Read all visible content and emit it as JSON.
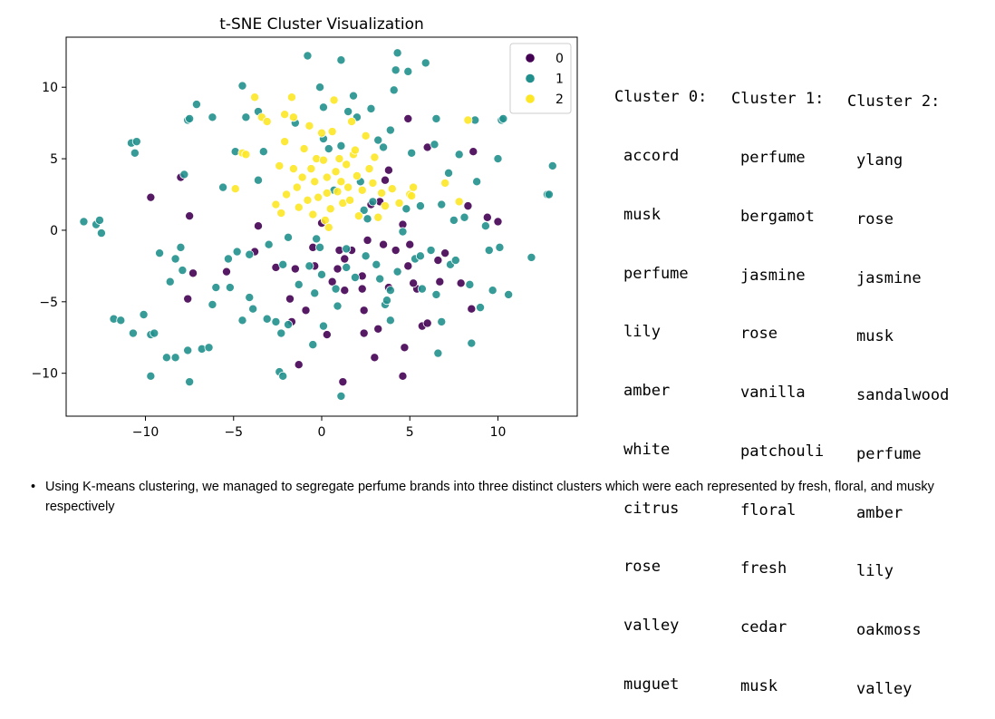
{
  "chart_data": {
    "type": "scatter",
    "title": "t-SNE Cluster Visualization",
    "xlabel": "",
    "ylabel": "",
    "xlim": [
      -14.5,
      14.5
    ],
    "ylim": [
      -13,
      13.5
    ],
    "xticks": [
      -10,
      -5,
      0,
      5,
      10
    ],
    "yticks": [
      -10,
      -5,
      0,
      5,
      10
    ],
    "xtick_labels": [
      "−10",
      "−5",
      "0",
      "5",
      "10"
    ],
    "ytick_labels": [
      "−10",
      "−5",
      "0",
      "5",
      "10"
    ],
    "grid": false,
    "legend_position": "top-right",
    "series": [
      {
        "name": "0",
        "color": "#440154",
        "points": [
          [
            -9.7,
            2.3
          ],
          [
            -8.0,
            3.7
          ],
          [
            -7.5,
            1.0
          ],
          [
            -7.3,
            -3.0
          ],
          [
            -5.4,
            -2.9
          ],
          [
            -3.6,
            0.3
          ],
          [
            -3.8,
            -1.5
          ],
          [
            -2.6,
            -2.6
          ],
          [
            -1.8,
            -4.8
          ],
          [
            -1.7,
            -6.4
          ],
          [
            -1.3,
            -9.4
          ],
          [
            -0.9,
            -5.6
          ],
          [
            -0.5,
            -1.2
          ],
          [
            0.0,
            0.5
          ],
          [
            0.3,
            -7.3
          ],
          [
            0.6,
            -3.6
          ],
          [
            0.9,
            -2.7
          ],
          [
            1.2,
            -10.6
          ],
          [
            1.3,
            -4.2
          ],
          [
            1.7,
            -1.4
          ],
          [
            2.3,
            -3.2
          ],
          [
            2.4,
            -5.6
          ],
          [
            2.4,
            -7.2
          ],
          [
            3.0,
            -8.9
          ],
          [
            2.3,
            -4.1
          ],
          [
            3.2,
            -6.9
          ],
          [
            3.3,
            2.0
          ],
          [
            3.8,
            -4.0
          ],
          [
            3.6,
            3.5
          ],
          [
            4.2,
            -1.4
          ],
          [
            4.6,
            0.4
          ],
          [
            4.7,
            -8.2
          ],
          [
            4.9,
            -2.5
          ],
          [
            5.4,
            -4.1
          ],
          [
            5.7,
            -6.7
          ],
          [
            6.0,
            -6.5
          ],
          [
            6.6,
            -2.1
          ],
          [
            6.7,
            -3.6
          ],
          [
            7.0,
            -1.6
          ],
          [
            7.9,
            -3.7
          ],
          [
            8.3,
            1.7
          ],
          [
            8.5,
            -5.5
          ],
          [
            8.6,
            5.5
          ],
          [
            9.4,
            0.9
          ],
          [
            10.0,
            0.6
          ],
          [
            3.8,
            4.2
          ],
          [
            5.0,
            -1.0
          ],
          [
            1.0,
            -1.4
          ],
          [
            -1.5,
            -2.7
          ],
          [
            2.8,
            1.8
          ],
          [
            4.9,
            7.8
          ],
          [
            6.0,
            5.8
          ],
          [
            4.6,
            -10.2
          ],
          [
            1.3,
            -2.0
          ],
          [
            -0.4,
            -2.5
          ],
          [
            3.5,
            -1.0
          ],
          [
            -7.6,
            -4.8
          ],
          [
            2.6,
            -0.7
          ],
          [
            5.2,
            -3.7
          ]
        ]
      },
      {
        "name": "1",
        "color": "#21908d",
        "points": [
          [
            -13.5,
            0.6
          ],
          [
            -12.8,
            0.4
          ],
          [
            -12.6,
            0.7
          ],
          [
            -12.5,
            -0.2
          ],
          [
            -11.8,
            -6.2
          ],
          [
            -11.4,
            -6.3
          ],
          [
            -10.8,
            6.1
          ],
          [
            -10.5,
            6.2
          ],
          [
            -10.6,
            5.4
          ],
          [
            -10.7,
            -7.2
          ],
          [
            -10.1,
            -5.9
          ],
          [
            -9.7,
            -7.3
          ],
          [
            -9.7,
            -10.2
          ],
          [
            -9.5,
            -7.2
          ],
          [
            -9.2,
            -1.6
          ],
          [
            -8.8,
            -8.9
          ],
          [
            -8.6,
            -3.6
          ],
          [
            -8.3,
            -8.9
          ],
          [
            -8.3,
            -2.0
          ],
          [
            -8.0,
            -1.2
          ],
          [
            -7.9,
            -2.8
          ],
          [
            -7.8,
            3.9
          ],
          [
            -7.6,
            -8.4
          ],
          [
            -7.5,
            -10.6
          ],
          [
            -7.6,
            7.7
          ],
          [
            -7.5,
            7.8
          ],
          [
            -7.1,
            8.8
          ],
          [
            -6.8,
            -8.3
          ],
          [
            -6.4,
            -8.2
          ],
          [
            -6.2,
            7.9
          ],
          [
            -6.2,
            -5.2
          ],
          [
            -5.6,
            3.0
          ],
          [
            -5.3,
            -2.0
          ],
          [
            -5.2,
            -4.0
          ],
          [
            -4.9,
            5.5
          ],
          [
            -4.8,
            -1.5
          ],
          [
            -4.5,
            -6.3
          ],
          [
            -4.5,
            10.1
          ],
          [
            -4.3,
            7.9
          ],
          [
            -4.1,
            -4.7
          ],
          [
            -4.1,
            -1.7
          ],
          [
            -3.9,
            -5.5
          ],
          [
            -3.6,
            3.5
          ],
          [
            -3.6,
            8.3
          ],
          [
            -3.3,
            5.5
          ],
          [
            -3.1,
            -6.2
          ],
          [
            -2.6,
            -6.4
          ],
          [
            -2.3,
            -7.2
          ],
          [
            -2.4,
            -9.9
          ],
          [
            -2.2,
            -10.2
          ],
          [
            -2.2,
            -2.4
          ],
          [
            -1.9,
            -6.6
          ],
          [
            -1.9,
            -0.5
          ],
          [
            -1.5,
            7.5
          ],
          [
            -1.3,
            -3.8
          ],
          [
            -0.8,
            12.2
          ],
          [
            -0.7,
            -2.5
          ],
          [
            -0.4,
            -4.4
          ],
          [
            -0.3,
            -0.6
          ],
          [
            -0.1,
            -1.2
          ],
          [
            0.0,
            -3.1
          ],
          [
            0.1,
            8.6
          ],
          [
            -0.1,
            10.0
          ],
          [
            0.1,
            6.4
          ],
          [
            0.1,
            -6.7
          ],
          [
            0.4,
            5.7
          ],
          [
            0.7,
            2.8
          ],
          [
            0.8,
            -4.1
          ],
          [
            0.9,
            -5.3
          ],
          [
            1.1,
            -11.6
          ],
          [
            1.1,
            11.9
          ],
          [
            1.1,
            5.9
          ],
          [
            1.4,
            -1.3
          ],
          [
            1.4,
            -2.6
          ],
          [
            1.5,
            8.3
          ],
          [
            1.8,
            9.4
          ],
          [
            1.9,
            -3.3
          ],
          [
            2.0,
            7.9
          ],
          [
            2.2,
            3.4
          ],
          [
            2.4,
            1.4
          ],
          [
            2.6,
            0.8
          ],
          [
            2.8,
            8.5
          ],
          [
            2.9,
            2.0
          ],
          [
            3.1,
            -2.4
          ],
          [
            3.3,
            -3.4
          ],
          [
            3.5,
            5.8
          ],
          [
            3.6,
            -5.2
          ],
          [
            3.7,
            -4.9
          ],
          [
            3.9,
            -4.2
          ],
          [
            3.9,
            7.0
          ],
          [
            3.9,
            -6.3
          ],
          [
            4.1,
            9.8
          ],
          [
            4.2,
            11.2
          ],
          [
            4.3,
            12.4
          ],
          [
            4.9,
            11.1
          ],
          [
            4.3,
            -2.9
          ],
          [
            4.6,
            -0.1
          ],
          [
            4.8,
            1.5
          ],
          [
            5.1,
            5.4
          ],
          [
            5.3,
            -2.0
          ],
          [
            5.6,
            1.7
          ],
          [
            5.7,
            -4.1
          ],
          [
            5.9,
            11.7
          ],
          [
            6.2,
            -1.4
          ],
          [
            6.4,
            6.0
          ],
          [
            6.5,
            7.8
          ],
          [
            6.5,
            -4.5
          ],
          [
            6.6,
            -8.6
          ],
          [
            6.8,
            -6.4
          ],
          [
            6.8,
            1.8
          ],
          [
            7.2,
            4.0
          ],
          [
            7.3,
            -2.4
          ],
          [
            7.5,
            0.7
          ],
          [
            7.6,
            -2.1
          ],
          [
            8.1,
            0.9
          ],
          [
            8.4,
            -3.8
          ],
          [
            8.5,
            -7.9
          ],
          [
            8.7,
            7.7
          ],
          [
            8.8,
            3.4
          ],
          [
            9.0,
            -5.4
          ],
          [
            9.3,
            0.3
          ],
          [
            9.5,
            -1.4
          ],
          [
            9.7,
            -4.2
          ],
          [
            10.1,
            -1.2
          ],
          [
            10.2,
            7.7
          ],
          [
            10.3,
            7.8
          ],
          [
            10.6,
            -4.5
          ],
          [
            11.9,
            -1.9
          ],
          [
            12.8,
            2.5
          ],
          [
            12.9,
            2.5
          ],
          [
            13.1,
            4.5
          ],
          [
            10.0,
            5.0
          ],
          [
            7.8,
            5.3
          ],
          [
            -6.0,
            -4.0
          ],
          [
            5.6,
            -1.8
          ],
          [
            2.5,
            -1.8
          ],
          [
            -3.0,
            -1.0
          ],
          [
            3.2,
            6.3
          ],
          [
            -0.5,
            -8.0
          ]
        ]
      },
      {
        "name": "2",
        "color": "#fde725",
        "points": [
          [
            -4.9,
            2.9
          ],
          [
            -4.5,
            5.4
          ],
          [
            -4.3,
            5.3
          ],
          [
            -3.8,
            9.3
          ],
          [
            -3.4,
            7.9
          ],
          [
            -3.1,
            7.6
          ],
          [
            -2.6,
            1.8
          ],
          [
            -2.4,
            4.5
          ],
          [
            -2.3,
            1.2
          ],
          [
            -2.1,
            8.1
          ],
          [
            -2.1,
            6.2
          ],
          [
            -2.0,
            2.5
          ],
          [
            -1.7,
            9.3
          ],
          [
            -1.6,
            7.9
          ],
          [
            -1.6,
            4.3
          ],
          [
            -1.4,
            3.0
          ],
          [
            -1.3,
            1.6
          ],
          [
            -1.1,
            3.7
          ],
          [
            -1.0,
            5.7
          ],
          [
            -0.8,
            2.1
          ],
          [
            -0.7,
            7.3
          ],
          [
            -0.6,
            4.3
          ],
          [
            -0.5,
            1.1
          ],
          [
            -0.4,
            3.4
          ],
          [
            -0.3,
            5.0
          ],
          [
            -0.2,
            2.3
          ],
          [
            0.0,
            6.8
          ],
          [
            0.1,
            4.9
          ],
          [
            0.2,
            0.7
          ],
          [
            0.3,
            3.7
          ],
          [
            0.3,
            2.6
          ],
          [
            0.5,
            1.5
          ],
          [
            0.6,
            6.9
          ],
          [
            0.8,
            4.1
          ],
          [
            0.9,
            2.7
          ],
          [
            1.0,
            5.0
          ],
          [
            1.1,
            3.4
          ],
          [
            1.2,
            1.9
          ],
          [
            1.4,
            4.6
          ],
          [
            1.5,
            3.0
          ],
          [
            1.6,
            2.1
          ],
          [
            1.7,
            7.6
          ],
          [
            1.8,
            5.3
          ],
          [
            2.0,
            3.8
          ],
          [
            2.1,
            1.0
          ],
          [
            2.3,
            2.8
          ],
          [
            2.5,
            6.6
          ],
          [
            2.7,
            4.3
          ],
          [
            2.9,
            3.3
          ],
          [
            3.0,
            5.1
          ],
          [
            3.2,
            0.9
          ],
          [
            3.4,
            2.6
          ],
          [
            3.6,
            1.7
          ],
          [
            4.0,
            2.9
          ],
          [
            4.4,
            1.9
          ],
          [
            5.0,
            2.5
          ],
          [
            5.1,
            2.4
          ],
          [
            5.2,
            3.0
          ],
          [
            7.0,
            3.3
          ],
          [
            7.8,
            2.0
          ],
          [
            8.3,
            7.7
          ],
          [
            0.7,
            9.1
          ],
          [
            1.9,
            5.6
          ],
          [
            0.4,
            0.2
          ]
        ]
      }
    ]
  },
  "clusters": [
    {
      "title": "Cluster 0:",
      "terms": [
        "accord",
        "musk",
        "perfume",
        "lily",
        "amber",
        "white",
        "citrus",
        "rose",
        "valley",
        "muguet"
      ]
    },
    {
      "title": "Cluster 1:",
      "terms": [
        "perfume",
        "bergamot",
        "jasmine",
        "rose",
        "vanilla",
        "patchouli",
        "floral",
        "fresh",
        "cedar",
        "musk"
      ]
    },
    {
      "title": "Cluster 2:",
      "terms": [
        "ylang",
        "rose",
        "jasmine",
        "musk",
        "sandalwood",
        "perfume",
        "amber",
        "lily",
        "oakmoss",
        "valley"
      ]
    }
  ],
  "bullet": {
    "marker": "•",
    "text": "Using K-means clustering, we managed to segregate perfume brands into three distinct clusters which were each represented by fresh, floral, and musky respectively"
  }
}
